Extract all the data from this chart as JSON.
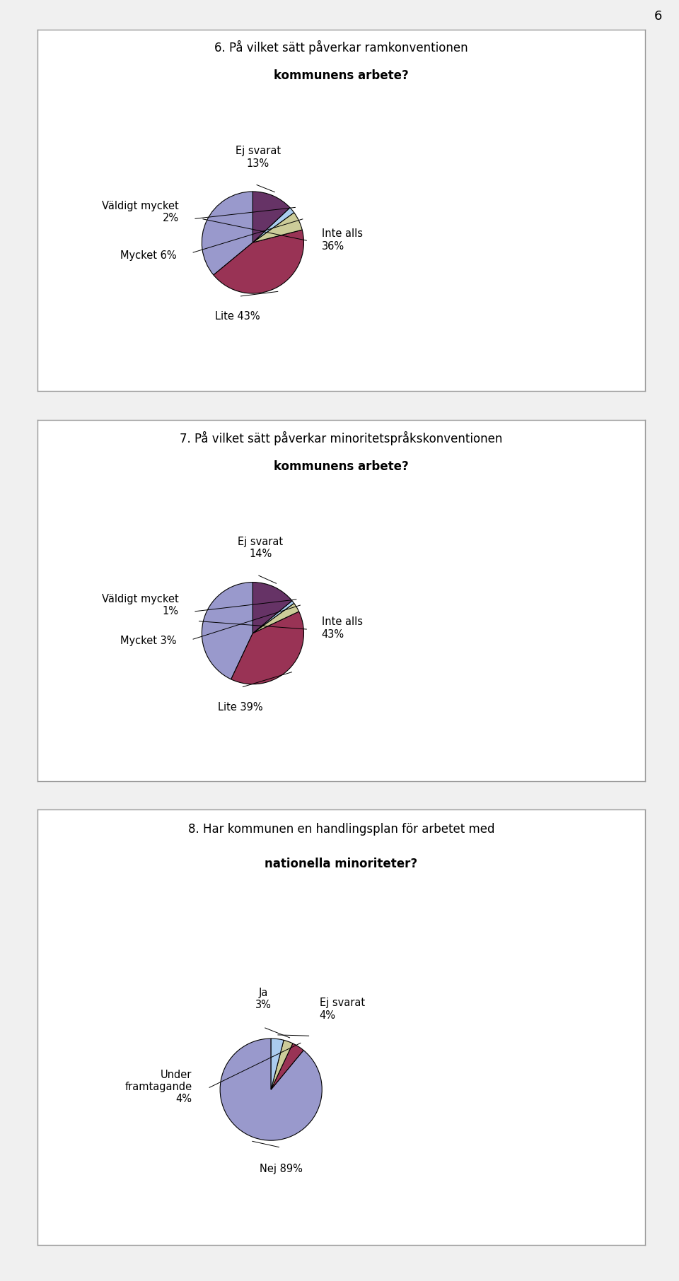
{
  "page_number": "6",
  "charts": [
    {
      "title_line1": "6. På vilket sätt påverkar ramkonventionen",
      "title_line2": "kommunens arbete?",
      "slices": [
        36,
        43,
        6,
        2,
        13
      ],
      "labels": [
        "Inte alls\n36%",
        "Lite 43%",
        "Mycket 6%",
        "Väldigt mycket\n2%",
        "Ej svarat\n13%"
      ],
      "colors": [
        "#9999cc",
        "#993355",
        "#cccc99",
        "#aaccee",
        "#663366"
      ],
      "startangle": 90,
      "label_coords": [
        [
          1.35,
          0.05,
          "left"
        ],
        [
          -0.3,
          -1.35,
          "center"
        ],
        [
          -1.5,
          -0.25,
          "right"
        ],
        [
          -1.45,
          0.6,
          "right"
        ],
        [
          0.1,
          1.45,
          "center"
        ]
      ]
    },
    {
      "title_line1": "7. På vilket sätt påverkar minoritetspråkskonventionen",
      "title_line2": "kommunens arbete?",
      "slices": [
        43,
        39,
        3,
        1,
        14
      ],
      "labels": [
        "Inte alls\n43%",
        "Lite 39%",
        "Mycket 3%",
        "Väldigt mycket\n1%",
        "Ej svarat\n14%"
      ],
      "colors": [
        "#9999cc",
        "#993355",
        "#cccc99",
        "#aaccee",
        "#663366"
      ],
      "startangle": 90,
      "label_coords": [
        [
          1.35,
          0.1,
          "left"
        ],
        [
          -0.25,
          -1.35,
          "center"
        ],
        [
          -1.5,
          -0.15,
          "right"
        ],
        [
          -1.45,
          0.55,
          "right"
        ],
        [
          0.15,
          1.45,
          "center"
        ]
      ]
    },
    {
      "title_line1": "8. Har kommunen en handlingsplan för arbetet med",
      "title_line2": "nationella minoriteter?",
      "slices": [
        89,
        4,
        3,
        4
      ],
      "labels": [
        "Nej 89%",
        "Under\nframtagande\n4%",
        "Ja\n3%",
        "Ej svarat\n4%"
      ],
      "colors": [
        "#9999cc",
        "#993355",
        "#cccc99",
        "#aaccee"
      ],
      "startangle": 90,
      "label_coords": [
        [
          0.2,
          -1.45,
          "center"
        ],
        [
          -1.55,
          0.05,
          "right"
        ],
        [
          -0.15,
          1.55,
          "center"
        ],
        [
          0.95,
          1.35,
          "left"
        ]
      ]
    }
  ],
  "bg_color": "#f0f0f0",
  "box_color": "#ffffff",
  "box_edge_color": "#999999",
  "title_fontsize": 12,
  "label_fontsize": 10.5,
  "page_num_fontsize": 13
}
